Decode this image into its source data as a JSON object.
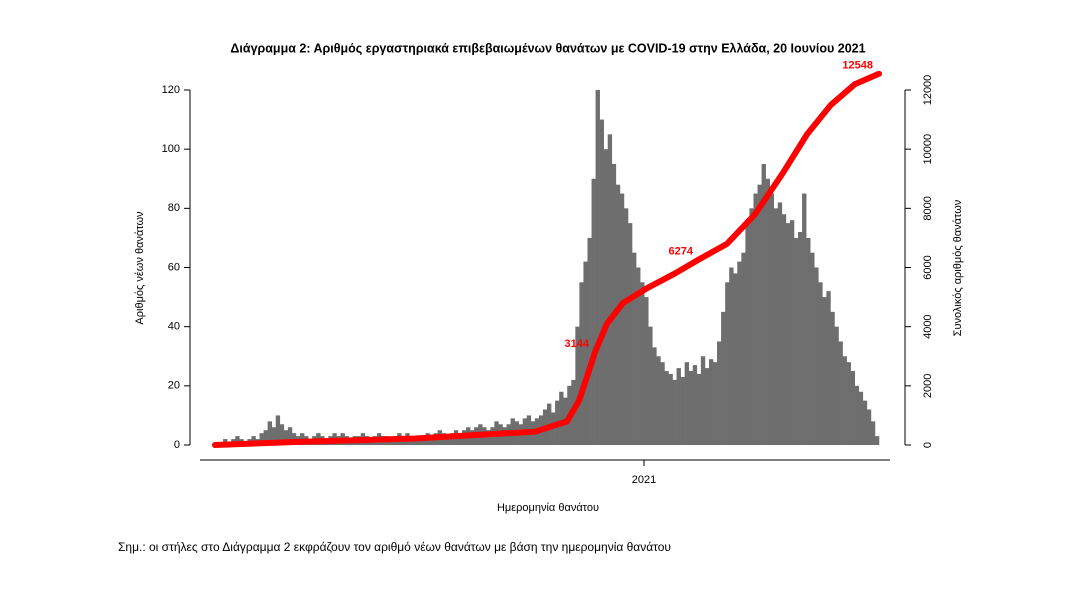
{
  "chart_data": {
    "type": "bar",
    "title": "Διάγραμμα 2: Αριθμός εργαστηριακά επιβεβαιωμένων θανάτων με COVID-19 στην Ελλάδα, 20 Ιουνίου 2021",
    "xlabel": "Ημερομηνία θανάτου",
    "ylabel": "Αριθμός νέων θανάτων",
    "y2label": "Συνολικός αριθμός θανάτων",
    "note": "Σημ.: οι στήλες στο Διάγραμμα 2 εκφράζουν τον αριθμό νέων θανάτων με βάση την ημερομηνία θανάτου",
    "xlim": [
      0,
      166
    ],
    "xticks": [
      {
        "value": 107.25,
        "label": "2021"
      }
    ],
    "ylim": [
      0,
      120
    ],
    "yticks": [
      0,
      20,
      40,
      60,
      80,
      100,
      120
    ],
    "y2lim": [
      0,
      12000
    ],
    "y2ticks": [
      0,
      2000,
      4000,
      6000,
      8000,
      10000,
      12000
    ],
    "series": [
      {
        "color": "#6e6e6e",
        "values": [
          1,
          1,
          2,
          1,
          2,
          3,
          2,
          1,
          2,
          3,
          2,
          4,
          5,
          8,
          6,
          10,
          7,
          5,
          6,
          4,
          3,
          4,
          3,
          2,
          3,
          4,
          3,
          2,
          3,
          4,
          3,
          4,
          3,
          2,
          3,
          3,
          4,
          3,
          2,
          3,
          4,
          3,
          3,
          2,
          3,
          4,
          3,
          4,
          3,
          3,
          2,
          3,
          4,
          3,
          4,
          5,
          4,
          3,
          4,
          5,
          4,
          5,
          6,
          5,
          6,
          7,
          6,
          5,
          6,
          8,
          7,
          6,
          7,
          9,
          8,
          7,
          9,
          10,
          8,
          9,
          10,
          12,
          14,
          11,
          15,
          18,
          16,
          20,
          22,
          40,
          55,
          62,
          70,
          90,
          120,
          110,
          100,
          105,
          95,
          88,
          85,
          80,
          75,
          65,
          60,
          55,
          50,
          40,
          33,
          30,
          28,
          25,
          24,
          22,
          26,
          23,
          28,
          25,
          27,
          24,
          30,
          26,
          29,
          28,
          35,
          45,
          55,
          60,
          58,
          62,
          65,
          75,
          80,
          85,
          88,
          95,
          90,
          85,
          80,
          82,
          78,
          75,
          76,
          70,
          72,
          85,
          70,
          65,
          60,
          55,
          50,
          52,
          45,
          40,
          35,
          30,
          28,
          25,
          20,
          18,
          15,
          12,
          8,
          3
        ]
      },
      {
        "axis": "y2",
        "color": "#ff0000",
        "x": [
          0,
          20,
          50,
          80,
          88,
          91,
          93,
          95,
          98,
          102,
          108,
          115,
          121,
          128,
          135,
          142,
          148,
          154,
          160,
          166
        ],
        "values": [
          0,
          100,
          220,
          450,
          800,
          1500,
          2300,
          3144,
          4100,
          4800,
          5300,
          5800,
          6274,
          6800,
          7800,
          9200,
          10500,
          11500,
          12200,
          12548
        ]
      }
    ]
  }
}
